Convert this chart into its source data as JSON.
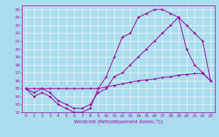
{
  "xlabel": "Windchill (Refroidissement éolien,°C)",
  "xlim": [
    -0.5,
    23.5
  ],
  "ylim": [
    12,
    25.5
  ],
  "yticks": [
    12,
    13,
    14,
    15,
    16,
    17,
    18,
    19,
    20,
    21,
    22,
    23,
    24,
    25
  ],
  "xticks": [
    0,
    1,
    2,
    3,
    4,
    5,
    6,
    7,
    8,
    9,
    10,
    11,
    12,
    13,
    14,
    15,
    16,
    17,
    18,
    19,
    20,
    21,
    22,
    23
  ],
  "bg_color": "#aaddee",
  "line_color": "#990099",
  "curve1_x": [
    0,
    1,
    2,
    3,
    4,
    5,
    6,
    7,
    8,
    9,
    10,
    11,
    12,
    13,
    14,
    15,
    16,
    17,
    18,
    19,
    20,
    21,
    22,
    23
  ],
  "curve1_y": [
    15,
    14,
    14.5,
    14,
    13,
    12.5,
    12,
    12,
    12.5,
    15,
    16.5,
    19,
    21.5,
    22,
    24,
    24.5,
    25,
    25,
    24.5,
    24,
    20,
    18,
    17,
    16
  ],
  "curve2_x": [
    0,
    1,
    2,
    3,
    4,
    5,
    6,
    7,
    8,
    9,
    10,
    11,
    12,
    13,
    14,
    15,
    16,
    17,
    18,
    19,
    20,
    21,
    22,
    23
  ],
  "curve2_y": [
    15,
    14.5,
    15,
    14.5,
    13.5,
    13,
    12.5,
    12.5,
    13,
    14.5,
    15,
    16.5,
    17,
    18,
    19,
    20,
    21,
    22,
    23,
    24,
    23,
    22,
    21,
    16
  ],
  "curve3_x": [
    0,
    1,
    2,
    3,
    4,
    5,
    6,
    7,
    8,
    9,
    10,
    11,
    12,
    13,
    14,
    15,
    16,
    17,
    18,
    19,
    20,
    21,
    22,
    23
  ],
  "curve3_y": [
    15,
    15,
    15,
    15,
    15,
    15,
    15,
    15,
    15,
    15,
    15.2,
    15.4,
    15.6,
    15.8,
    16,
    16.1,
    16.2,
    16.4,
    16.5,
    16.7,
    16.8,
    16.9,
    16.9,
    16
  ]
}
